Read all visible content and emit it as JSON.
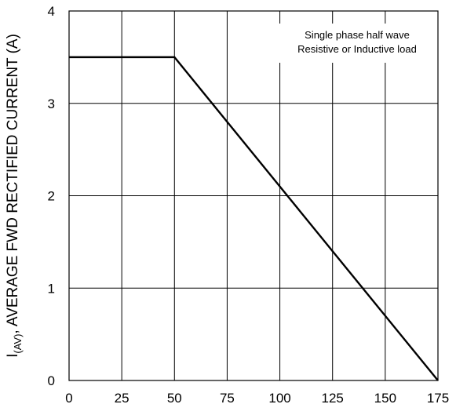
{
  "chart_data": {
    "type": "line",
    "xlabel": "",
    "ylabel": {
      "prefix": "I",
      "subscript": "(AV)",
      "text": ", AVERAGE FWD RECTIFIED CURRENT (A)"
    },
    "annotation": [
      "Single phase half wave",
      "Resistive or Inductive load"
    ],
    "xlim": [
      0,
      175
    ],
    "ylim": [
      0,
      4
    ],
    "xticks": [
      0,
      25,
      50,
      75,
      100,
      125,
      150,
      175
    ],
    "yticks": [
      0,
      1,
      2,
      3,
      4
    ],
    "grid": true,
    "series": [
      {
        "x": [
          0,
          50,
          175
        ],
        "y": [
          3.5,
          3.5,
          0
        ],
        "color": "#000000"
      }
    ]
  }
}
